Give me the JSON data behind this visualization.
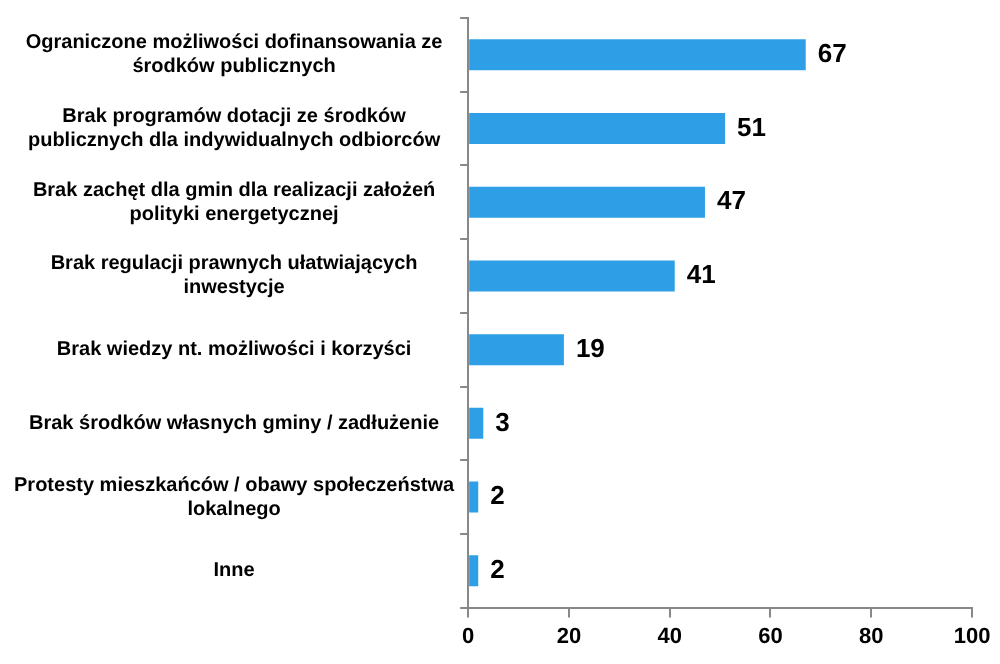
{
  "chart_data": {
    "type": "bar",
    "orientation": "horizontal",
    "categories": [
      "Ograniczone możliwości dofinansowania ze środków publicznych",
      "Brak programów dotacji ze środków publicznych dla indywidualnych odbiorców",
      "Brak zachęt dla gmin dla realizacji założeń polityki energetycznej",
      "Brak regulacji prawnych ułatwiających inwestycje",
      "Brak wiedzy nt. możliwości i korzyści",
      "Brak środków własnych gminy / zadłużenie",
      "Protesty mieszkańców / obawy społeczeństwa lokalnego",
      "Inne"
    ],
    "values": [
      67,
      51,
      47,
      41,
      19,
      3,
      2,
      2
    ],
    "color": "#2e9fe6",
    "xlim": [
      0,
      100
    ],
    "xticks": [
      0,
      20,
      40,
      60,
      80,
      100
    ],
    "grid": false,
    "legend": false,
    "data_labels": true
  }
}
